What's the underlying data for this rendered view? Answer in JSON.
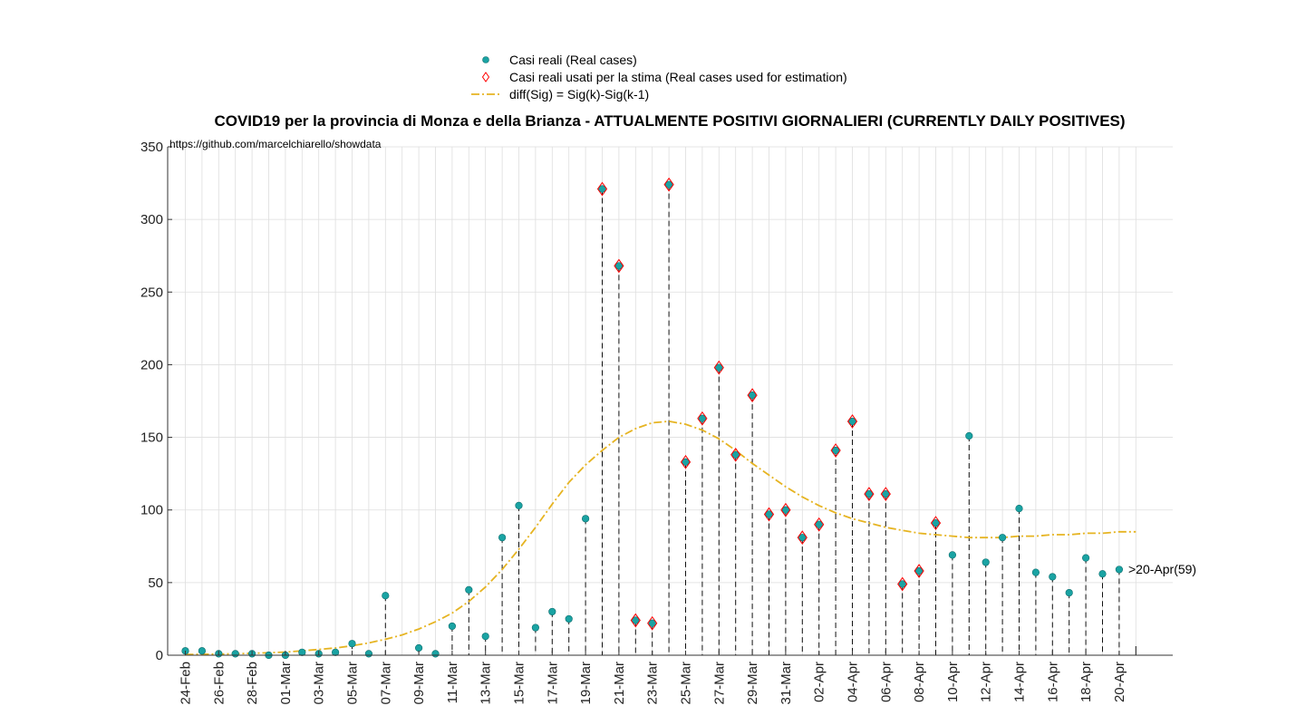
{
  "chart_data": {
    "type": "scatter",
    "title": "COVID19 per la provincia di Monza e della Brianza - ATTUALMENTE POSITIVI GIORNALIERI (CURRENTLY DAILY POSITIVES)",
    "source": "https://github.com/marcelchiarello/showdata",
    "end_label": ">20-Apr(59)",
    "ylim": [
      0,
      350
    ],
    "yticks": [
      0,
      50,
      100,
      150,
      200,
      250,
      300,
      350
    ],
    "grid": true,
    "legend_position": "top-center",
    "x": [
      "24-Feb",
      "25-Feb",
      "26-Feb",
      "27-Feb",
      "28-Feb",
      "29-Feb",
      "01-Mar",
      "02-Mar",
      "03-Mar",
      "04-Mar",
      "05-Mar",
      "06-Mar",
      "07-Mar",
      "08-Mar",
      "09-Mar",
      "10-Mar",
      "11-Mar",
      "12-Mar",
      "13-Mar",
      "14-Mar",
      "15-Mar",
      "16-Mar",
      "17-Mar",
      "18-Mar",
      "19-Mar",
      "20-Mar",
      "21-Mar",
      "22-Mar",
      "23-Mar",
      "24-Mar",
      "25-Mar",
      "26-Mar",
      "27-Mar",
      "28-Mar",
      "29-Mar",
      "30-Mar",
      "31-Mar",
      "01-Apr",
      "02-Apr",
      "03-Apr",
      "04-Apr",
      "05-Apr",
      "06-Apr",
      "07-Apr",
      "08-Apr",
      "09-Apr",
      "10-Apr",
      "11-Apr",
      "12-Apr",
      "13-Apr",
      "14-Apr",
      "15-Apr",
      "16-Apr",
      "17-Apr",
      "18-Apr",
      "19-Apr",
      "20-Apr",
      "21-Apr"
    ],
    "xtick_labels": [
      "24-Feb",
      "26-Feb",
      "28-Feb",
      "01-Mar",
      "03-Mar",
      "05-Mar",
      "07-Mar",
      "09-Mar",
      "11-Mar",
      "13-Mar",
      "15-Mar",
      "17-Mar",
      "19-Mar",
      "21-Mar",
      "23-Mar",
      "25-Mar",
      "27-Mar",
      "29-Mar",
      "31-Mar",
      "02-Apr",
      "04-Apr",
      "06-Apr",
      "08-Apr",
      "10-Apr",
      "12-Apr",
      "14-Apr",
      "16-Apr",
      "18-Apr",
      "20-Apr"
    ],
    "series": [
      {
        "name": "Casi reali (Real cases)",
        "color": "#1aa3a3",
        "values": [
          3,
          3,
          1,
          1,
          1,
          0,
          0,
          2,
          1,
          2,
          8,
          1,
          41,
          null,
          5,
          1,
          20,
          45,
          13,
          81,
          103,
          19,
          30,
          25,
          94,
          321,
          268,
          24,
          22,
          324,
          133,
          163,
          198,
          138,
          179,
          97,
          100,
          81,
          90,
          141,
          161,
          111,
          111,
          49,
          58,
          91,
          69,
          151,
          64,
          81,
          101,
          57,
          54,
          43,
          67,
          56,
          59,
          null
        ]
      },
      {
        "name": "Casi reali usati per la stima (Real cases used for estimation)",
        "color": "#ff0000",
        "dates": [
          "20-Mar",
          "21-Mar",
          "22-Mar",
          "23-Mar",
          "24-Mar",
          "25-Mar",
          "26-Mar",
          "27-Mar",
          "28-Mar",
          "29-Mar",
          "30-Mar",
          "31-Mar",
          "01-Apr",
          "02-Apr",
          "03-Apr",
          "04-Apr",
          "05-Apr",
          "06-Apr",
          "07-Apr",
          "08-Apr",
          "09-Apr"
        ],
        "values": [
          321,
          268,
          24,
          22,
          324,
          133,
          163,
          198,
          138,
          179,
          97,
          100,
          81,
          90,
          141,
          161,
          111,
          111,
          49,
          58,
          91
        ]
      },
      {
        "name": "diff(Sig) = Sig(k)-Sig(k-1)",
        "color": "#e6b422",
        "values": [
          0.5,
          0.6,
          0.8,
          1,
          1.3,
          1.7,
          2.2,
          3,
          4,
          5,
          6.5,
          8.5,
          11,
          14,
          18,
          23,
          29,
          37,
          47,
          59,
          73,
          88,
          104,
          119,
          131,
          141,
          150,
          156,
          160,
          161,
          159,
          155,
          149,
          141,
          132,
          124,
          116,
          109,
          103,
          98,
          94,
          91,
          88,
          86,
          84,
          83,
          82,
          81,
          81,
          81,
          82,
          82,
          83,
          83,
          84,
          84,
          85,
          85
        ]
      }
    ]
  },
  "colors": {
    "marker_fill": "#1aa3a3",
    "diamond": "#ff0000",
    "fit_line": "#e6b422",
    "grid": "#dedede"
  }
}
